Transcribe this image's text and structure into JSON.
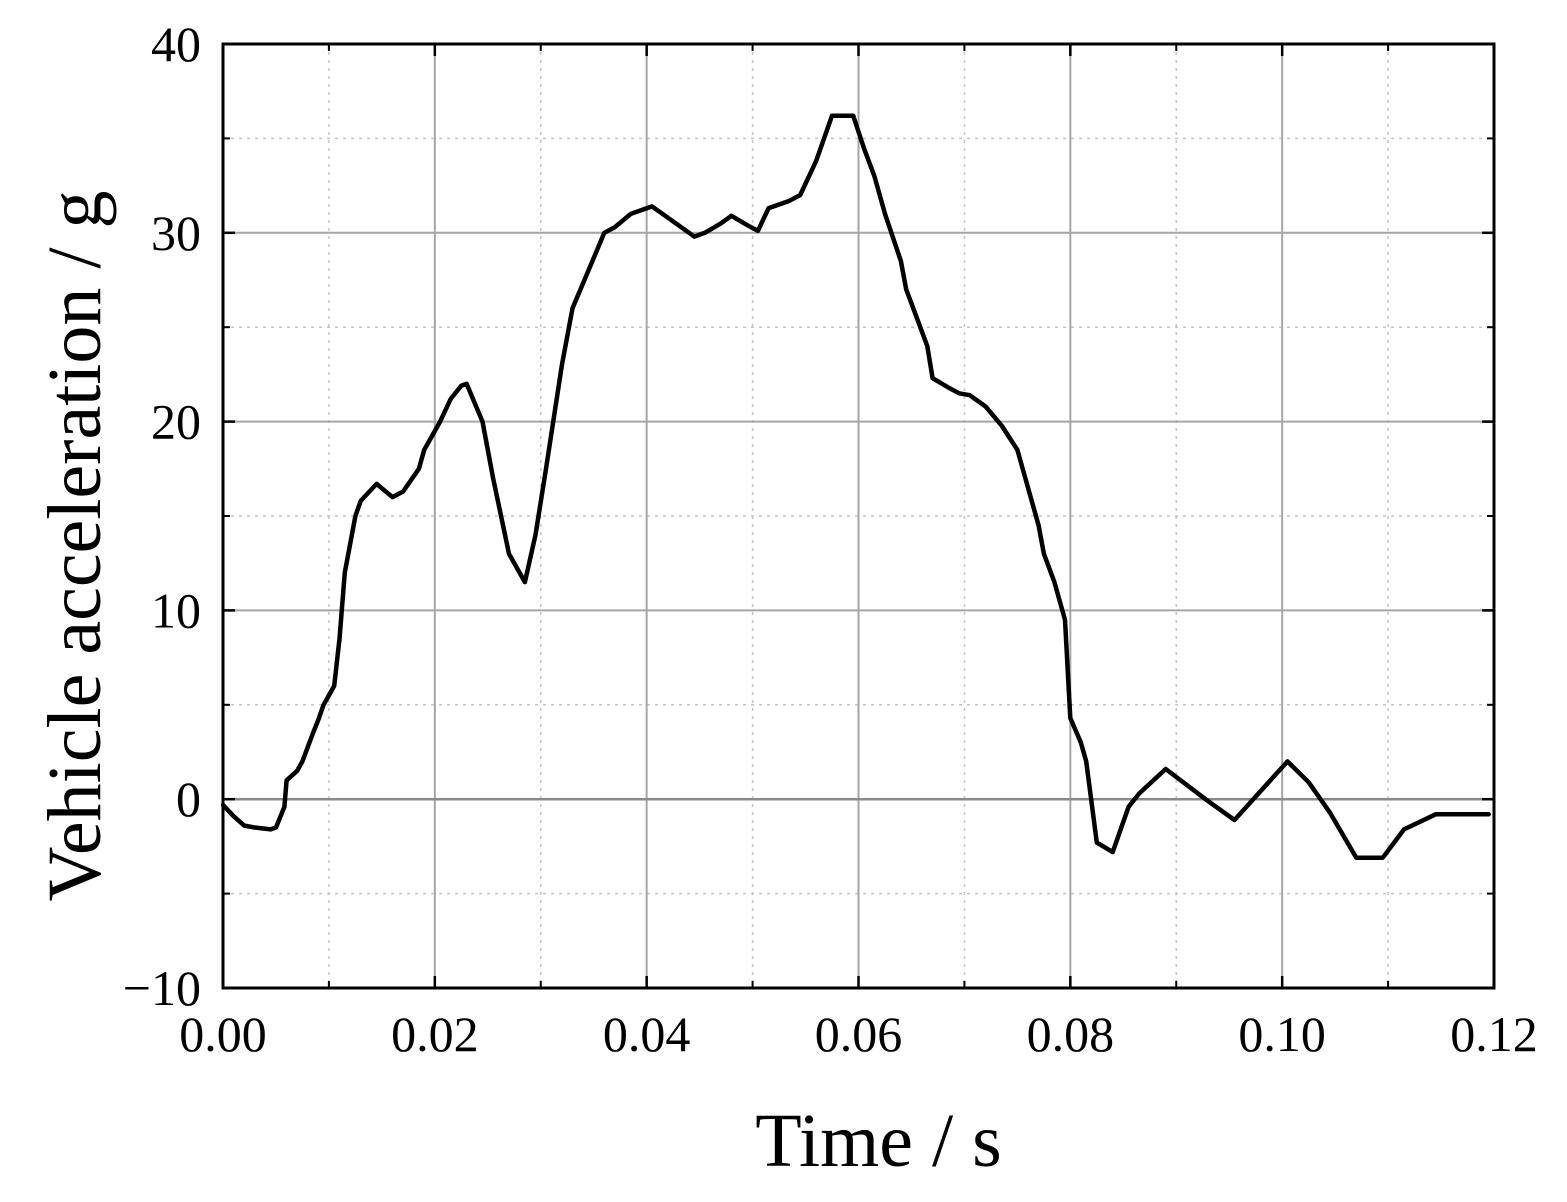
{
  "chart_data": {
    "type": "line",
    "title": "",
    "xlabel": "Time / s",
    "ylabel": "Vehicle acceleration / g",
    "xlim": [
      0,
      0.12
    ],
    "ylim": [
      -10,
      40
    ],
    "x_ticks": [
      0,
      0.02,
      0.04,
      0.06,
      0.08,
      0.1,
      0.12
    ],
    "x_tick_labels": [
      "0.00",
      "0.02",
      "0.04",
      "0.06",
      "0.08",
      "0.10",
      "0.12"
    ],
    "y_ticks": [
      -10,
      0,
      10,
      20,
      30,
      40
    ],
    "y_tick_labels": [
      "−10",
      "0",
      "10",
      "20",
      "30",
      "40"
    ],
    "grid": true,
    "legend": "none",
    "line_color": "#000000",
    "series": [
      {
        "x": [
          0,
          0.001,
          0.002,
          0.003,
          0.0045,
          0.005,
          0.0058,
          0.006,
          0.007,
          0.0075,
          0.0085,
          0.009,
          0.0095,
          0.0105,
          0.011,
          0.0115,
          0.0125,
          0.013,
          0.0145,
          0.016,
          0.017,
          0.0185,
          0.019,
          0.0205,
          0.0215,
          0.0225,
          0.023,
          0.0245,
          0.0255,
          0.027,
          0.0285,
          0.0295,
          0.0305,
          0.032,
          0.033,
          0.0345,
          0.036,
          0.037,
          0.0385,
          0.039,
          0.0405,
          0.0415,
          0.043,
          0.0445,
          0.0455,
          0.047,
          0.048,
          0.0495,
          0.0505,
          0.0515,
          0.0535,
          0.0545,
          0.056,
          0.0575,
          0.0595,
          0.0605,
          0.0615,
          0.0625,
          0.064,
          0.0645,
          0.0655,
          0.0665,
          0.067,
          0.0685,
          0.0695,
          0.0705,
          0.072,
          0.0735,
          0.075,
          0.0755,
          0.077,
          0.0775,
          0.0785,
          0.0795,
          0.08,
          0.081,
          0.0815,
          0.0825,
          0.084,
          0.0855,
          0.0865,
          0.089,
          0.093,
          0.0955,
          0.1005,
          0.1025,
          0.1045,
          0.107,
          0.1095,
          0.1115,
          0.1145,
          0.1195
        ],
        "y": [
          -0.3,
          -0.9,
          -1.4,
          -1.5,
          -1.6,
          -1.5,
          -0.4,
          1.0,
          1.5,
          2.0,
          3.5,
          4.2,
          5.0,
          6.0,
          8.5,
          12.0,
          15.0,
          15.8,
          16.7,
          16.0,
          16.3,
          17.5,
          18.5,
          20.0,
          21.2,
          21.9,
          22.0,
          20.0,
          17.0,
          13.0,
          11.5,
          14.0,
          17.5,
          23.0,
          26.0,
          28.0,
          30.0,
          30.3,
          31.0,
          31.1,
          31.4,
          31.0,
          30.4,
          29.8,
          30.0,
          30.5,
          30.9,
          30.4,
          30.1,
          31.3,
          31.7,
          32.0,
          33.8,
          36.2,
          36.2,
          34.5,
          33.0,
          31.0,
          28.5,
          27.0,
          25.5,
          24.0,
          22.3,
          21.8,
          21.5,
          21.4,
          20.8,
          19.8,
          18.5,
          17.5,
          14.5,
          13.0,
          11.5,
          9.5,
          4.3,
          3.0,
          2.0,
          -2.3,
          -2.8,
          -0.4,
          0.3,
          1.6,
          -0.1,
          -1.1,
          2.0,
          0.9,
          -0.7,
          -3.1,
          -3.1,
          -1.6,
          -0.8,
          -0.8
        ]
      }
    ]
  }
}
